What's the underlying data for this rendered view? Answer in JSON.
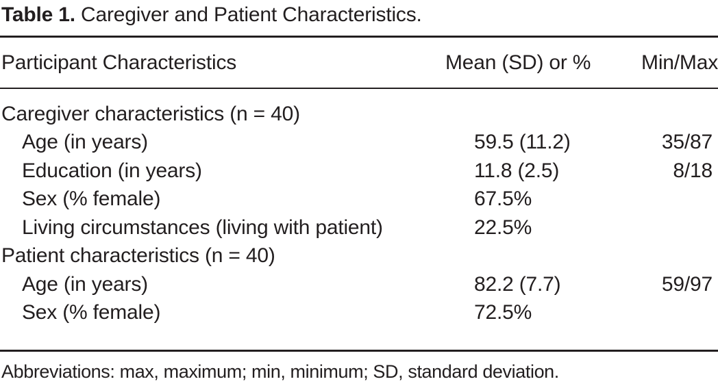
{
  "title": {
    "prefix": "Table 1.",
    "text": " Caregiver and Patient Characteristics."
  },
  "table": {
    "columns": [
      "Participant Characteristics",
      "Mean (SD) or %",
      "Min/Max"
    ],
    "rows": [
      {
        "label": "Caregiver characteristics (n = 40)",
        "mean": "",
        "minmax": ""
      },
      {
        "label": "Age (in years)",
        "mean": "59.5 (11.2)",
        "minmax": "35/87"
      },
      {
        "label": "Education (in years)",
        "mean": "11.8 (2.5)",
        "minmax": "8/18"
      },
      {
        "label": "Sex (% female)",
        "mean": "67.5%",
        "minmax": ""
      },
      {
        "label": "Living circumstances (living with patient)",
        "mean": "22.5%",
        "minmax": ""
      },
      {
        "label": "Patient characteristics (n = 40)",
        "mean": "",
        "minmax": ""
      },
      {
        "label": "Age (in years)",
        "mean": "82.2 (7.7)",
        "minmax": "59/97"
      },
      {
        "label": "Sex (% female)",
        "mean": "72.5%",
        "minmax": ""
      }
    ]
  },
  "footnote": "Abbreviations: max, maximum; min, minimum; SD, standard deviation.",
  "colors": {
    "text": "#221e1f",
    "background": "#ffffff",
    "rule": "#221e1f"
  },
  "chart_data": {
    "type": "table",
    "title": "Table 1. Caregiver and Patient Characteristics.",
    "columns": [
      "Participant Characteristics",
      "Mean (SD) or %",
      "Min/Max"
    ],
    "rows": [
      [
        "Caregiver characteristics (n = 40)",
        "",
        ""
      ],
      [
        "Age (in years)",
        "59.5 (11.2)",
        "35/87"
      ],
      [
        "Education (in years)",
        "11.8 (2.5)",
        "8/18"
      ],
      [
        "Sex (% female)",
        "67.5%",
        ""
      ],
      [
        "Living circumstances (living with patient)",
        "22.5%",
        ""
      ],
      [
        "Patient characteristics (n = 40)",
        "",
        ""
      ],
      [
        "Age (in years)",
        "82.2 (7.7)",
        "59/97"
      ],
      [
        "Sex (% female)",
        "72.5%",
        ""
      ]
    ]
  }
}
